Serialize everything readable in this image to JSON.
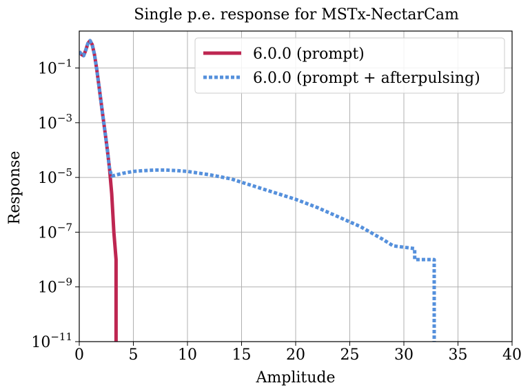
{
  "chart_data": {
    "type": "line",
    "title": "Single p.e. response for MSTx-NectarCam",
    "xlabel": "Amplitude",
    "ylabel": "Response",
    "xlim": [
      0,
      40
    ],
    "ylim_exponents": [
      -11,
      0.35
    ],
    "yscale": "log",
    "grid": true,
    "legend_position": "top-right",
    "x_ticks": [
      "0",
      "5",
      "10",
      "15",
      "20",
      "25",
      "30",
      "35",
      "40"
    ],
    "y_ticks": [
      {
        "base": "10",
        "exp": "−1",
        "value": -1
      },
      {
        "base": "10",
        "exp": "−3",
        "value": -3
      },
      {
        "base": "10",
        "exp": "−5",
        "value": -5
      },
      {
        "base": "10",
        "exp": "−7",
        "value": -7
      },
      {
        "base": "10",
        "exp": "−9",
        "value": -9
      },
      {
        "base": "10",
        "exp": "−11",
        "value": -11
      }
    ],
    "series": [
      {
        "name": "6.0.0 (prompt)",
        "color": "#be2651",
        "style": "solid",
        "x": [
          0.0,
          0.2,
          0.4,
          0.6,
          0.8,
          1.0,
          1.2,
          1.4,
          1.6,
          1.8,
          2.0,
          2.2,
          2.4,
          2.6,
          2.8,
          3.0,
          3.2,
          3.4,
          3.4
        ],
        "log10_y": [
          -0.4,
          -0.5,
          -0.55,
          -0.35,
          -0.1,
          0.0,
          -0.15,
          -0.5,
          -1.0,
          -1.6,
          -2.2,
          -2.8,
          -3.4,
          -4.0,
          -4.7,
          -5.6,
          -7.0,
          -8.0,
          -11.0
        ]
      },
      {
        "name": "6.0.0 (prompt + afterpulsing)",
        "color": "#5590dc",
        "style": "dotted",
        "x": [
          0.0,
          0.2,
          0.4,
          0.6,
          0.8,
          1.0,
          1.2,
          1.4,
          1.6,
          1.8,
          2.0,
          2.2,
          2.4,
          2.6,
          2.8,
          3.0,
          4,
          5,
          6,
          7,
          8,
          9,
          10,
          12,
          14,
          16,
          18,
          20,
          22,
          24,
          26,
          28,
          29,
          30,
          31,
          31,
          32,
          32.8,
          32.8
        ],
        "log10_y": [
          -0.4,
          -0.5,
          -0.55,
          -0.35,
          -0.1,
          0.0,
          -0.15,
          -0.5,
          -1.0,
          -1.6,
          -2.2,
          -2.8,
          -3.4,
          -4.0,
          -4.7,
          -4.95,
          -4.85,
          -4.78,
          -4.75,
          -4.73,
          -4.73,
          -4.75,
          -4.78,
          -4.9,
          -5.05,
          -5.3,
          -5.55,
          -5.8,
          -6.1,
          -6.45,
          -6.8,
          -7.25,
          -7.5,
          -7.55,
          -7.6,
          -8.0,
          -8.0,
          -8.0,
          -11.0
        ]
      }
    ]
  }
}
